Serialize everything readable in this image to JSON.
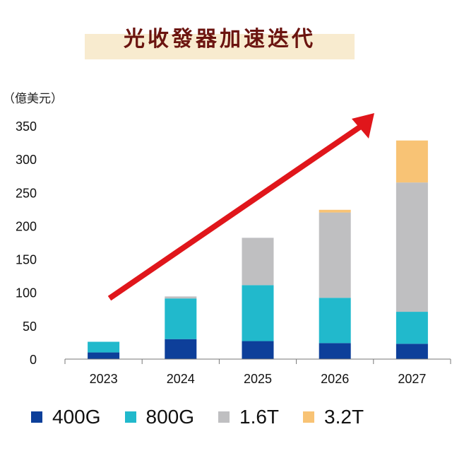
{
  "title": "光收發器加速迭代",
  "unit_label": "（億美元）",
  "colors": {
    "400G": "#0d3f9a",
    "800G": "#21b9cc",
    "1.6T": "#bfbfc1",
    "3.2T": "#f8c375",
    "arrow": "#e0161b",
    "title_band": "#f8ebcf",
    "title_text": "#6b1410"
  },
  "chart_data": {
    "type": "bar",
    "stacked": true,
    "categories": [
      "2023",
      "2024",
      "2025",
      "2026",
      "2027"
    ],
    "series": [
      {
        "name": "400G",
        "values": [
          10,
          30,
          27,
          24,
          23
        ]
      },
      {
        "name": "800G",
        "values": [
          16,
          61,
          84,
          68,
          48
        ]
      },
      {
        "name": "1.6T",
        "values": [
          0,
          3,
          71,
          128,
          194
        ]
      },
      {
        "name": "3.2T",
        "values": [
          0,
          0,
          0,
          4,
          63
        ]
      }
    ],
    "ylim": [
      0,
      350
    ],
    "yticks": [
      0,
      50,
      100,
      150,
      200,
      250,
      300,
      350
    ],
    "ytick_labels": [
      "0",
      "50",
      "100",
      "150",
      "200",
      "250",
      "300",
      "350"
    ],
    "xlabel": "",
    "ylabel": "",
    "legend_position": "bottom",
    "annotation": "red upward trend arrow"
  }
}
